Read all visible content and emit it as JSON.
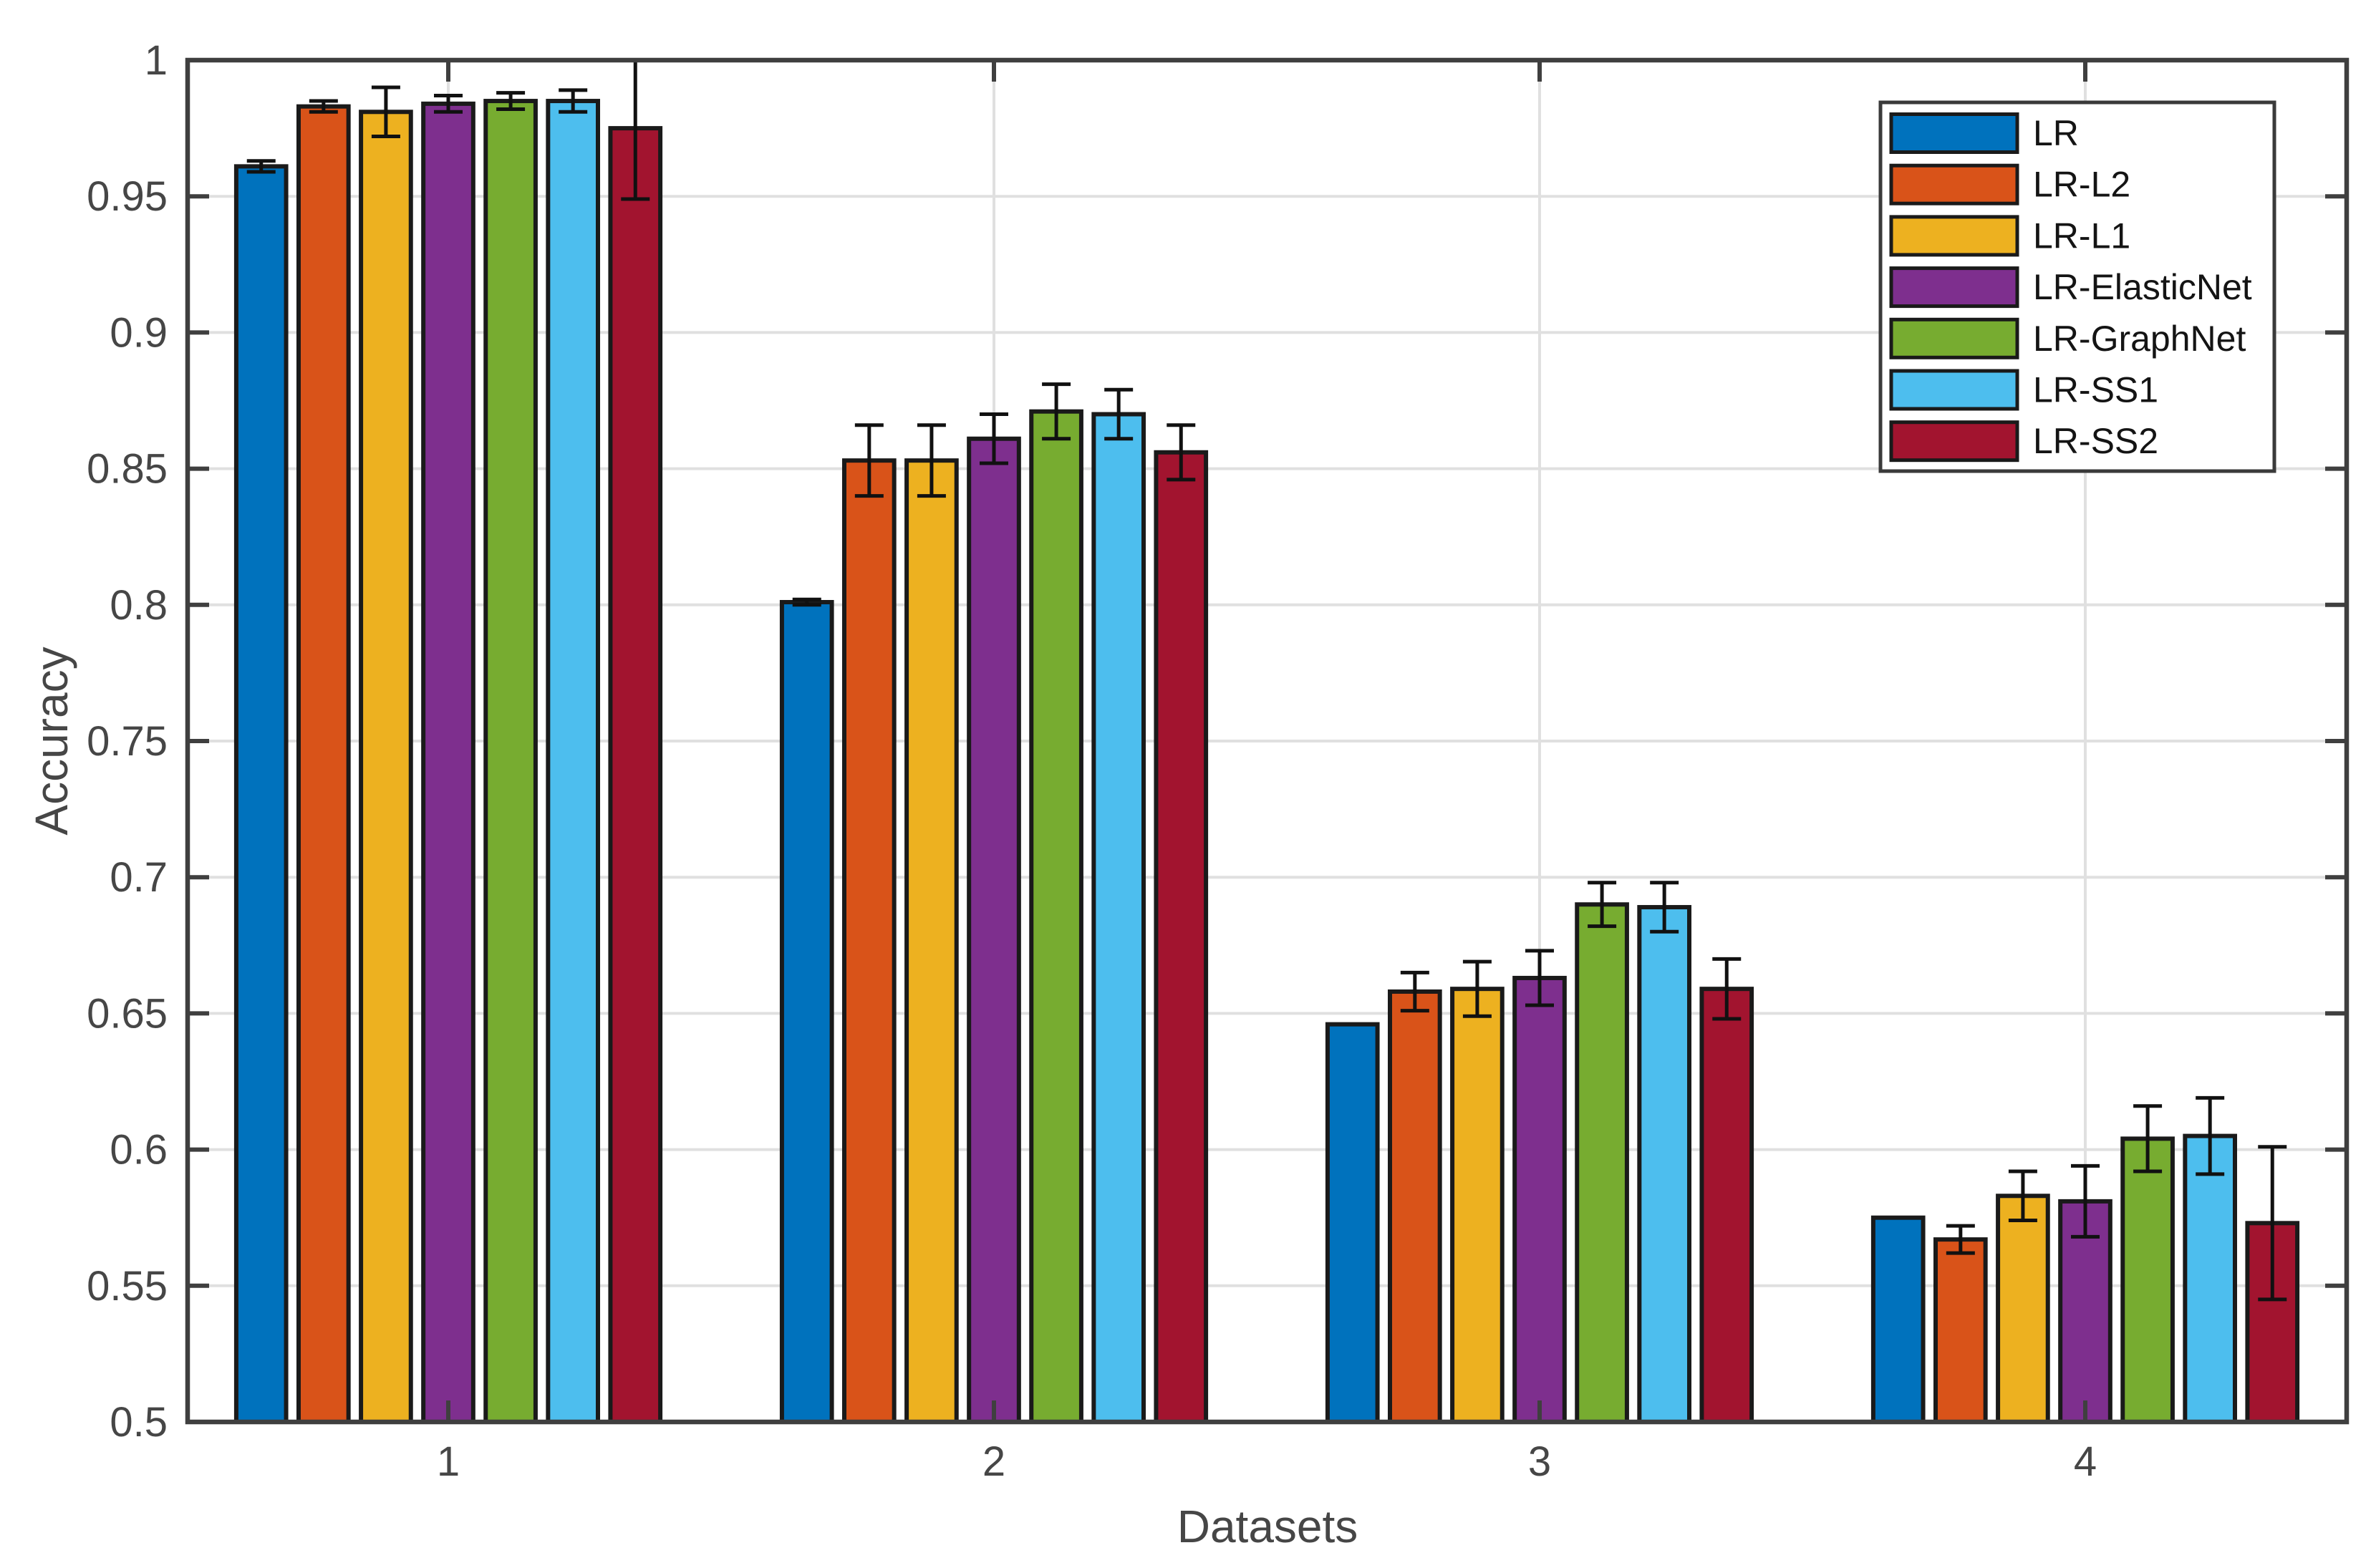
{
  "figure": {
    "background": "#ffffff",
    "axes_color": "#3f3f3f",
    "grid_color": "#e0e0e0",
    "tick_label_color": "#464646",
    "axis_label_color": "#464646",
    "bar_edge_color": "#1a1a1a",
    "error_bar_color": "#111111",
    "legend_border_color": "#3a3a3a",
    "legend_text_color": "#141414",
    "legend_background": "#ffffff"
  },
  "chart_data": {
    "type": "bar",
    "title": "",
    "xlabel": "Datasets",
    "ylabel": "Accuracy",
    "categories": [
      "1",
      "2",
      "3",
      "4"
    ],
    "ylim": [
      0.5,
      1
    ],
    "yticks": [
      0.5,
      0.55,
      0.6,
      0.65,
      0.7,
      0.75,
      0.8,
      0.85,
      0.9,
      0.95,
      1
    ],
    "ytick_labels": [
      "0.5",
      "0.55",
      "0.6",
      "0.65",
      "0.7",
      "0.75",
      "0.8",
      "0.85",
      "0.9",
      "0.95",
      "1"
    ],
    "grid": true,
    "error_bars": true,
    "legend_position": "northeast",
    "series": [
      {
        "name": "LR",
        "color": "#0072BD",
        "values": [
          0.961,
          0.801,
          0.646,
          0.575
        ],
        "errors": [
          0.002,
          0.001,
          0.0,
          0.0
        ]
      },
      {
        "name": "LR-L2",
        "color": "#D95319",
        "values": [
          0.983,
          0.853,
          0.658,
          0.567
        ],
        "errors": [
          0.002,
          0.013,
          0.007,
          0.005
        ]
      },
      {
        "name": "LR-L1",
        "color": "#EDB120",
        "values": [
          0.981,
          0.853,
          0.659,
          0.583
        ],
        "errors": [
          0.009,
          0.013,
          0.01,
          0.009
        ]
      },
      {
        "name": "LR-ElasticNet",
        "color": "#7E2F8E",
        "values": [
          0.984,
          0.861,
          0.663,
          0.581
        ],
        "errors": [
          0.003,
          0.009,
          0.01,
          0.013
        ]
      },
      {
        "name": "LR-GraphNet",
        "color": "#77AC30",
        "values": [
          0.985,
          0.871,
          0.69,
          0.604
        ],
        "errors": [
          0.003,
          0.01,
          0.008,
          0.012
        ]
      },
      {
        "name": "LR-SS1",
        "color": "#4DBEEE",
        "values": [
          0.985,
          0.87,
          0.689,
          0.605
        ],
        "errors": [
          0.004,
          0.009,
          0.009,
          0.014
        ]
      },
      {
        "name": "LR-SS2",
        "color": "#A2142F",
        "values": [
          0.975,
          0.856,
          0.659,
          0.573
        ],
        "errors": [
          0.026,
          0.01,
          0.011,
          0.028
        ]
      }
    ]
  }
}
